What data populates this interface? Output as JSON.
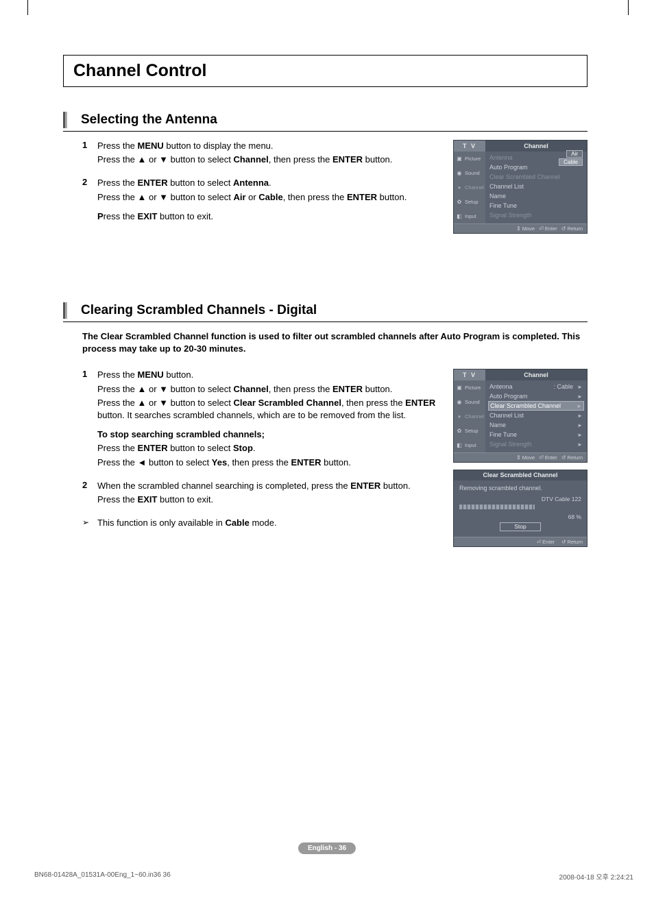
{
  "page_title": "Channel Control",
  "page_number_label": "English - 36",
  "footer_left": "BN68-01428A_01531A-00Eng_1~60.in36   36",
  "footer_right": "2008-04-18   오후 2:24:21",
  "section1": {
    "title": "Selecting the Antenna",
    "steps": [
      {
        "num": "1",
        "lines": [
          [
            {
              "t": "Press the "
            },
            {
              "t": "MENU",
              "b": true
            },
            {
              "t": " button to display the menu."
            }
          ],
          [
            {
              "t": "Press the ▲ or ▼ button to select "
            },
            {
              "t": "Channel",
              "b": true
            },
            {
              "t": ", then press the "
            },
            {
              "t": "ENTER",
              "b": true
            },
            {
              "t": " button."
            }
          ]
        ]
      },
      {
        "num": "2",
        "lines": [
          [
            {
              "t": "Press the "
            },
            {
              "t": "ENTER",
              "b": true
            },
            {
              "t": " button to select "
            },
            {
              "t": "Antenna",
              "b": true
            },
            {
              "t": "."
            }
          ],
          [
            {
              "t": "Press the ▲ or ▼ button to select "
            },
            {
              "t": "Air",
              "b": true
            },
            {
              "t": " or "
            },
            {
              "t": "Cable",
              "b": true
            },
            {
              "t": ", then press the "
            },
            {
              "t": "ENTER",
              "b": true
            },
            {
              "t": " button."
            }
          ]
        ],
        "extra": [
          [
            {
              "t": "P",
              "b": true
            },
            {
              "t": "ress the "
            },
            {
              "t": "EXIT",
              "b": true
            },
            {
              "t": " button to exit."
            }
          ]
        ]
      }
    ],
    "menu": {
      "tv": "T V",
      "header": "Channel",
      "sidebar": [
        "Picture",
        "Sound",
        "Channel",
        "Setup",
        "Input"
      ],
      "rows": [
        {
          "label": "Antenna",
          "dim": true,
          "options": [
            "Air",
            "Cable"
          ]
        },
        {
          "label": "Auto Program"
        },
        {
          "label": "Clear Scrambled Channel",
          "dim": true
        },
        {
          "label": "Channel List"
        },
        {
          "label": "Name"
        },
        {
          "label": "Fine Tune"
        },
        {
          "label": "Signal Strength",
          "dim": true
        }
      ],
      "footer": [
        "Move",
        "Enter",
        "Return"
      ]
    }
  },
  "section2": {
    "title": "Clearing Scrambled Channels - Digital",
    "intro": "The Clear Scrambled Channel function is used to filter out scrambled channels after Auto Program is completed. This process may take up to 20-30 minutes.",
    "steps": [
      {
        "num": "1",
        "lines": [
          [
            {
              "t": "Press the "
            },
            {
              "t": "MENU",
              "b": true
            },
            {
              "t": " button."
            }
          ],
          [
            {
              "t": "Press the ▲ or ▼ button to select "
            },
            {
              "t": "Channel",
              "b": true
            },
            {
              "t": ", then press the "
            },
            {
              "t": "ENTER",
              "b": true
            },
            {
              "t": " button."
            }
          ],
          [
            {
              "t": "Press the ▲ or ▼ button to select "
            },
            {
              "t": "Clear Scrambled Channel",
              "b": true
            },
            {
              "t": ", then press the "
            },
            {
              "t": "ENTER",
              "b": true
            },
            {
              "t": " button. It searches scrambled channels, which are to be removed from the list."
            }
          ]
        ],
        "extra": [
          [
            {
              "t": "To stop searching scrambled channels;",
              "b": true
            }
          ],
          [
            {
              "t": "Press the "
            },
            {
              "t": "ENTER",
              "b": true
            },
            {
              "t": " button to select "
            },
            {
              "t": "Stop",
              "b": true
            },
            {
              "t": "."
            }
          ],
          [
            {
              "t": "Press the ◄ button to select "
            },
            {
              "t": "Yes",
              "b": true
            },
            {
              "t": ", then press the "
            },
            {
              "t": "ENTER",
              "b": true
            },
            {
              "t": " button."
            }
          ]
        ]
      },
      {
        "num": "2",
        "lines": [
          [
            {
              "t": "When the scrambled channel searching is completed, press the "
            },
            {
              "t": "ENTER",
              "b": true
            },
            {
              "t": " button."
            }
          ],
          [
            {
              "t": "Press the "
            },
            {
              "t": "EXIT",
              "b": true
            },
            {
              "t": " button to exit."
            }
          ]
        ]
      }
    ],
    "note": [
      {
        "t": "This function is only available in "
      },
      {
        "t": "Cable",
        "b": true
      },
      {
        "t": " mode."
      }
    ],
    "menu": {
      "tv": "T V",
      "header": "Channel",
      "sidebar": [
        "Picture",
        "Sound",
        "Channel",
        "Setup",
        "Input"
      ],
      "rows": [
        {
          "label": "Antenna",
          "val": ": Cable",
          "arrow": true
        },
        {
          "label": "Auto Program",
          "arrow": true
        },
        {
          "label": "Clear Scrambled Channel",
          "arrow": true,
          "sel": true
        },
        {
          "label": "Channel List",
          "arrow": true
        },
        {
          "label": "Name",
          "arrow": true
        },
        {
          "label": "Fine Tune",
          "arrow": true
        },
        {
          "label": "Signal Strength",
          "arrow": true,
          "dim": true
        }
      ],
      "footer": [
        "Move",
        "Enter",
        "Return"
      ]
    },
    "csc": {
      "title": "Clear Scrambled Channel",
      "msg": "Removing scrambled channel.",
      "info1": "DTV Cable 122",
      "info2": "68 %",
      "stop": "Stop",
      "footer": [
        "Enter",
        "Return"
      ]
    }
  },
  "colors": {
    "tv_bg": "#5a6270",
    "tv_header": "#4b5460",
    "tv_sidebar": "#646c78",
    "tv_footer": "#6e7682",
    "tv_sel": "#848c98",
    "pill": "#9a9a9a"
  }
}
